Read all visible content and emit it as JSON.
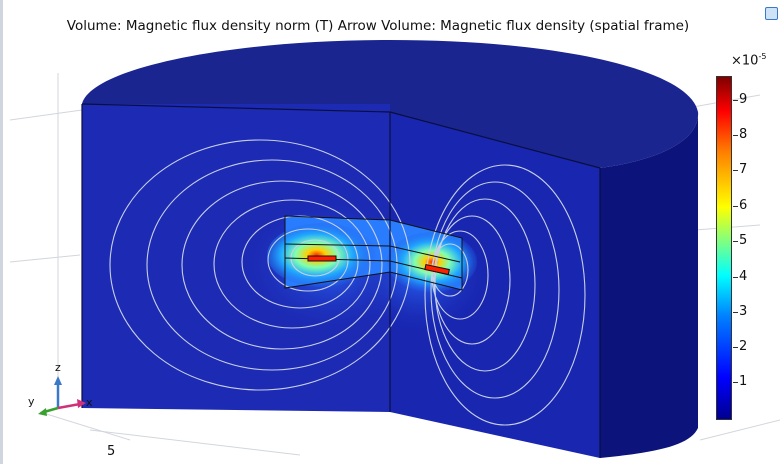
{
  "plot": {
    "title": "Volume: Magnetic flux density norm (T)  Arrow Volume: Magnetic flux density (spatial frame)"
  },
  "colorbar": {
    "exponent_base": "×10",
    "exponent_power": "-5",
    "ticks": [
      "9",
      "8",
      "7",
      "6",
      "5",
      "4",
      "3",
      "2",
      "1"
    ],
    "colormap": "rainbow",
    "max_color": "#800000",
    "min_color": "#00008f"
  },
  "axes": {
    "x_label": "x",
    "y_label": "y",
    "z_label": "z",
    "tick_label": "5"
  },
  "colors": {
    "body_front": "#1c2ab4",
    "body_top": "#1a2590",
    "body_side": "#0c137a",
    "contour": "#c8d0e8"
  }
}
